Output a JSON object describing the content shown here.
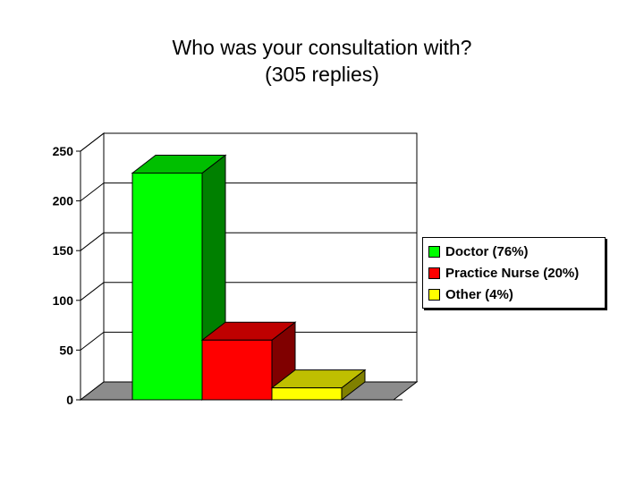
{
  "chart_data": {
    "type": "bar",
    "title": "Who was your consultation with?",
    "subtitle": "(305 replies)",
    "categories": [
      "Doctor (76%)",
      "Practice Nurse (20%)",
      "Other (4%)"
    ],
    "values": [
      228,
      60,
      12
    ],
    "colors": [
      "#00ff00",
      "#ff0000",
      "#ffff00"
    ],
    "ylim": [
      0,
      250
    ],
    "yticks": [
      0,
      50,
      100,
      150,
      200,
      250
    ],
    "xlabel": "",
    "ylabel": "",
    "grid": true,
    "legend_position": "right",
    "style": "3d"
  }
}
